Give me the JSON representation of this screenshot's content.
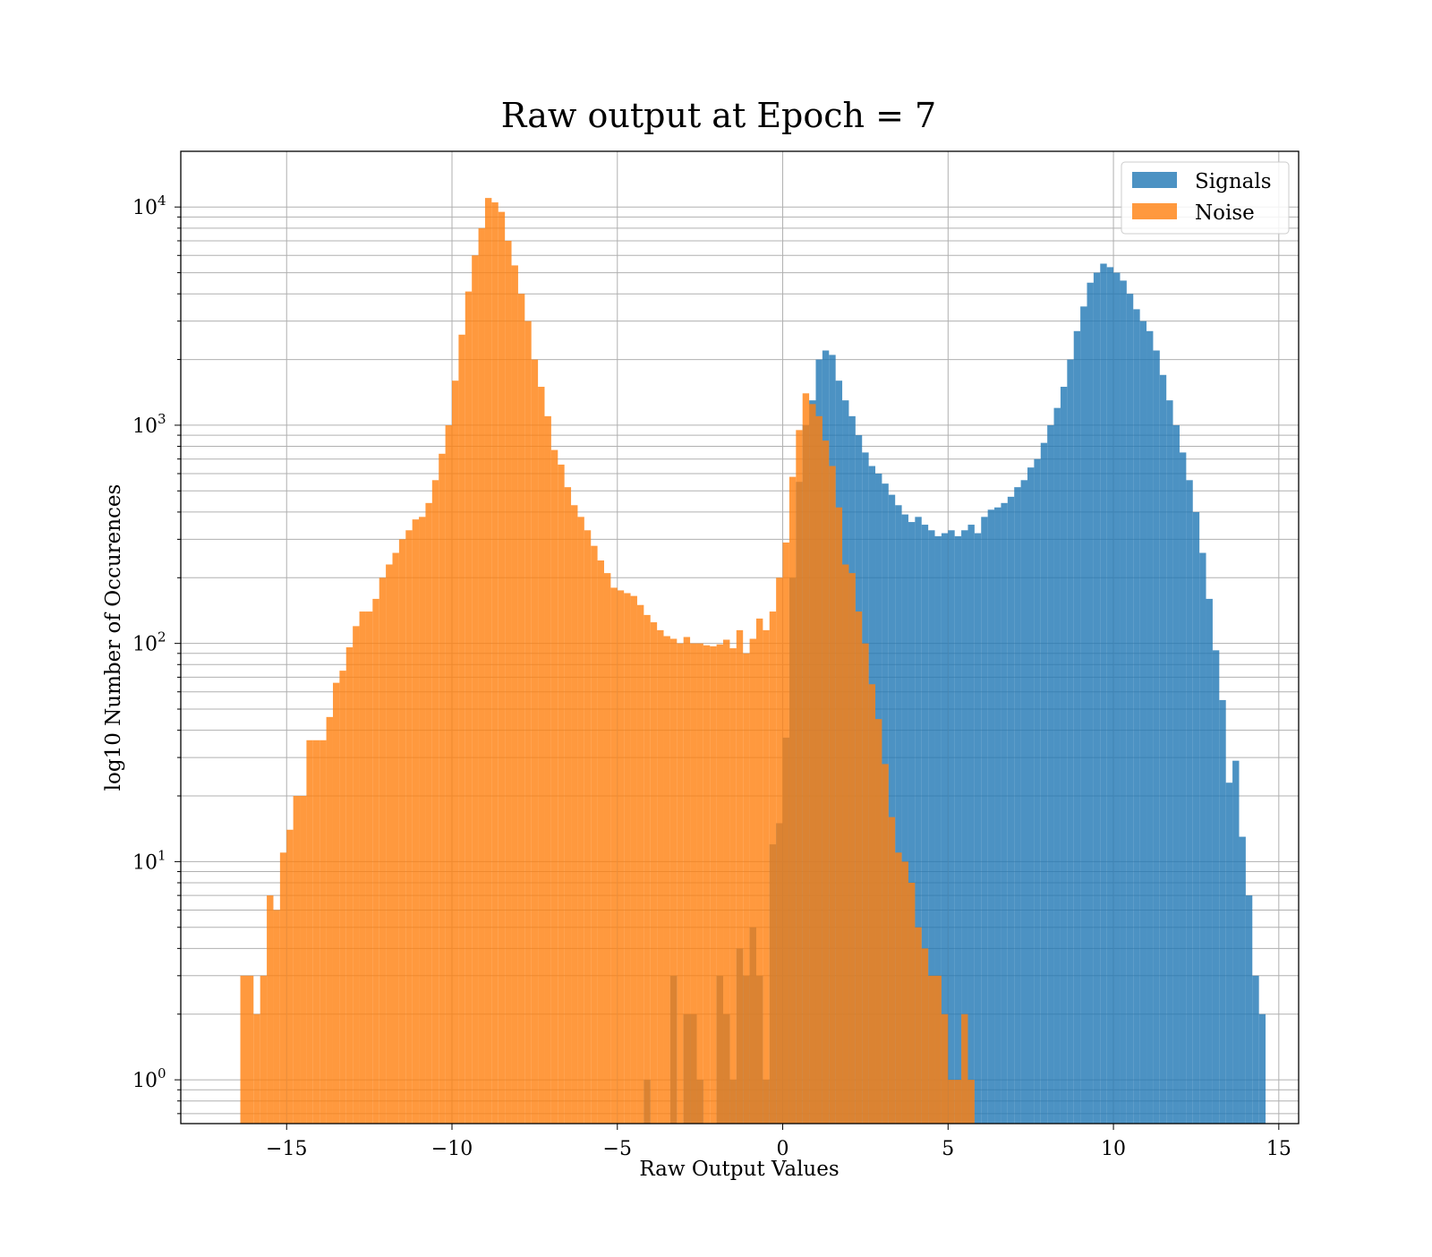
{
  "chart_data": {
    "type": "bar",
    "title": "Raw output at Epoch = 7",
    "xlabel": "Raw Output Values",
    "ylabel": "log10 Number of Occurences",
    "xlim": [
      -18.2,
      15.6
    ],
    "ylim": [
      0.63,
      18000
    ],
    "yscale": "log",
    "grid": true,
    "legend_position": "top-right",
    "xticks": [
      -15,
      -10,
      -5,
      0,
      5,
      10,
      15
    ],
    "xtick_labels": [
      "−15",
      "−10",
      "−5",
      "0",
      "5",
      "10",
      "15"
    ],
    "yticks": [
      {
        "value": 1,
        "base": "10",
        "exp": "0"
      },
      {
        "value": 10,
        "base": "10",
        "exp": "1"
      },
      {
        "value": 100,
        "base": "10",
        "exp": "2"
      },
      {
        "value": 1000,
        "base": "10",
        "exp": "3"
      },
      {
        "value": 10000,
        "base": "10",
        "exp": "4"
      }
    ],
    "series": [
      {
        "name": "Signals",
        "color": "#1f77b4",
        "opacity": 0.8,
        "bins": [
          [
            -4.2,
            -4.0,
            1
          ],
          [
            -3.4,
            -3.2,
            3
          ],
          [
            -3.0,
            -2.8,
            2
          ],
          [
            -2.8,
            -2.6,
            2
          ],
          [
            -2.6,
            -2.4,
            1
          ],
          [
            -2.0,
            -1.8,
            3
          ],
          [
            -1.8,
            -1.6,
            2
          ],
          [
            -1.6,
            -1.4,
            1
          ],
          [
            -1.4,
            -1.2,
            4
          ],
          [
            -1.2,
            -1.0,
            3
          ],
          [
            -1.0,
            -0.8,
            5
          ],
          [
            -0.8,
            -0.6,
            3
          ],
          [
            -0.6,
            -0.4,
            1
          ],
          [
            -0.4,
            -0.2,
            12
          ],
          [
            -0.2,
            0.0,
            15
          ],
          [
            0.0,
            0.2,
            37
          ],
          [
            0.2,
            0.4,
            200
          ],
          [
            0.4,
            0.6,
            550
          ],
          [
            0.6,
            0.8,
            1000
          ],
          [
            0.8,
            1.0,
            1300
          ],
          [
            1.0,
            1.2,
            2000
          ],
          [
            1.2,
            1.4,
            2200
          ],
          [
            1.4,
            1.6,
            2100
          ],
          [
            1.6,
            1.8,
            1600
          ],
          [
            1.8,
            2.0,
            1300
          ],
          [
            2.0,
            2.2,
            1100
          ],
          [
            2.2,
            2.4,
            900
          ],
          [
            2.4,
            2.6,
            750
          ],
          [
            2.6,
            2.8,
            650
          ],
          [
            2.8,
            3.0,
            600
          ],
          [
            3.0,
            3.2,
            540
          ],
          [
            3.2,
            3.4,
            480
          ],
          [
            3.4,
            3.6,
            430
          ],
          [
            3.6,
            3.8,
            390
          ],
          [
            3.8,
            4.0,
            360
          ],
          [
            4.0,
            4.2,
            380
          ],
          [
            4.2,
            4.4,
            350
          ],
          [
            4.4,
            4.6,
            330
          ],
          [
            4.6,
            4.8,
            310
          ],
          [
            4.8,
            5.0,
            320
          ],
          [
            5.0,
            5.2,
            330
          ],
          [
            5.2,
            5.4,
            310
          ],
          [
            5.4,
            5.6,
            330
          ],
          [
            5.6,
            5.8,
            350
          ],
          [
            5.8,
            6.0,
            320
          ],
          [
            6.0,
            6.2,
            380
          ],
          [
            6.2,
            6.4,
            410
          ],
          [
            6.4,
            6.6,
            420
          ],
          [
            6.6,
            6.8,
            440
          ],
          [
            6.8,
            7.0,
            470
          ],
          [
            7.0,
            7.2,
            520
          ],
          [
            7.2,
            7.4,
            560
          ],
          [
            7.4,
            7.6,
            640
          ],
          [
            7.6,
            7.8,
            700
          ],
          [
            7.8,
            8.0,
            830
          ],
          [
            8.0,
            8.2,
            1000
          ],
          [
            8.2,
            8.4,
            1200
          ],
          [
            8.4,
            8.6,
            1500
          ],
          [
            8.6,
            8.8,
            2000
          ],
          [
            8.8,
            9.0,
            2700
          ],
          [
            9.0,
            9.2,
            3500
          ],
          [
            9.2,
            9.4,
            4500
          ],
          [
            9.4,
            9.6,
            5000
          ],
          [
            9.6,
            9.8,
            5500
          ],
          [
            9.8,
            10.0,
            5300
          ],
          [
            10.0,
            10.2,
            5000
          ],
          [
            10.2,
            10.4,
            4600
          ],
          [
            10.4,
            10.6,
            4000
          ],
          [
            10.6,
            10.8,
            3400
          ],
          [
            10.8,
            11.0,
            3000
          ],
          [
            11.0,
            11.2,
            2700
          ],
          [
            11.2,
            11.4,
            2200
          ],
          [
            11.4,
            11.6,
            1700
          ],
          [
            11.6,
            11.8,
            1300
          ],
          [
            11.8,
            12.0,
            1000
          ],
          [
            12.0,
            12.2,
            750
          ],
          [
            12.2,
            12.4,
            560
          ],
          [
            12.4,
            12.6,
            400
          ],
          [
            12.6,
            12.8,
            260
          ],
          [
            12.8,
            13.0,
            160
          ],
          [
            13.0,
            13.2,
            93
          ],
          [
            13.2,
            13.4,
            55
          ],
          [
            13.4,
            13.6,
            23
          ],
          [
            13.6,
            13.8,
            29
          ],
          [
            13.8,
            14.0,
            13
          ],
          [
            14.0,
            14.2,
            7
          ],
          [
            14.2,
            14.4,
            3
          ],
          [
            14.4,
            14.6,
            2
          ]
        ]
      },
      {
        "name": "Noise",
        "color": "#ff7f0e",
        "opacity": 0.8,
        "bins": [
          [
            -16.4,
            -16.0,
            3
          ],
          [
            -16.0,
            -15.8,
            2
          ],
          [
            -15.8,
            -15.6,
            3
          ],
          [
            -15.6,
            -15.4,
            7
          ],
          [
            -15.4,
            -15.2,
            6
          ],
          [
            -15.2,
            -15.0,
            11
          ],
          [
            -15.0,
            -14.8,
            14
          ],
          [
            -14.8,
            -14.6,
            20
          ],
          [
            -14.6,
            -14.4,
            20
          ],
          [
            -14.4,
            -14.2,
            36
          ],
          [
            -14.2,
            -14.0,
            36
          ],
          [
            -14.0,
            -13.8,
            36
          ],
          [
            -13.8,
            -13.6,
            46
          ],
          [
            -13.6,
            -13.4,
            66
          ],
          [
            -13.4,
            -13.2,
            75
          ],
          [
            -13.2,
            -13.0,
            96
          ],
          [
            -13.0,
            -12.8,
            120
          ],
          [
            -12.8,
            -12.6,
            140
          ],
          [
            -12.6,
            -12.4,
            140
          ],
          [
            -12.4,
            -12.2,
            160
          ],
          [
            -12.2,
            -12.0,
            200
          ],
          [
            -12.0,
            -11.8,
            230
          ],
          [
            -11.8,
            -11.6,
            260
          ],
          [
            -11.6,
            -11.4,
            300
          ],
          [
            -11.4,
            -11.2,
            330
          ],
          [
            -11.2,
            -11.0,
            370
          ],
          [
            -11.0,
            -10.8,
            380
          ],
          [
            -10.8,
            -10.6,
            440
          ],
          [
            -10.6,
            -10.4,
            560
          ],
          [
            -10.4,
            -10.2,
            740
          ],
          [
            -10.2,
            -10.0,
            1000
          ],
          [
            -10.0,
            -9.8,
            1600
          ],
          [
            -9.8,
            -9.6,
            2600
          ],
          [
            -9.6,
            -9.4,
            4100
          ],
          [
            -9.4,
            -9.2,
            6000
          ],
          [
            -9.2,
            -9.0,
            8000
          ],
          [
            -9.0,
            -8.8,
            11000
          ],
          [
            -8.8,
            -8.6,
            10500
          ],
          [
            -8.6,
            -8.4,
            9500
          ],
          [
            -8.4,
            -8.2,
            7000
          ],
          [
            -8.2,
            -8.0,
            5400
          ],
          [
            -8.0,
            -7.8,
            4000
          ],
          [
            -7.8,
            -7.6,
            3000
          ],
          [
            -7.6,
            -7.4,
            2000
          ],
          [
            -7.4,
            -7.2,
            1500
          ],
          [
            -7.2,
            -7.0,
            1100
          ],
          [
            -7.0,
            -6.8,
            770
          ],
          [
            -6.8,
            -6.6,
            660
          ],
          [
            -6.6,
            -6.4,
            520
          ],
          [
            -6.4,
            -6.2,
            430
          ],
          [
            -6.2,
            -6.0,
            380
          ],
          [
            -6.0,
            -5.8,
            330
          ],
          [
            -5.8,
            -5.6,
            280
          ],
          [
            -5.6,
            -5.4,
            240
          ],
          [
            -5.4,
            -5.2,
            210
          ],
          [
            -5.2,
            -5.0,
            180
          ],
          [
            -5.0,
            -4.8,
            175
          ],
          [
            -4.8,
            -4.6,
            170
          ],
          [
            -4.6,
            -4.4,
            165
          ],
          [
            -4.4,
            -4.2,
            150
          ],
          [
            -4.2,
            -4.0,
            135
          ],
          [
            -4.0,
            -3.8,
            125
          ],
          [
            -3.8,
            -3.6,
            115
          ],
          [
            -3.6,
            -3.4,
            108
          ],
          [
            -3.4,
            -3.2,
            105
          ],
          [
            -3.2,
            -3.0,
            100
          ],
          [
            -3.0,
            -2.8,
            107
          ],
          [
            -2.8,
            -2.6,
            100
          ],
          [
            -2.6,
            -2.4,
            100
          ],
          [
            -2.4,
            -2.2,
            98
          ],
          [
            -2.2,
            -2.0,
            97
          ],
          [
            -2.0,
            -1.8,
            99
          ],
          [
            -1.8,
            -1.6,
            104
          ],
          [
            -1.6,
            -1.4,
            95
          ],
          [
            -1.4,
            -1.2,
            115
          ],
          [
            -1.2,
            -1.0,
            90
          ],
          [
            -1.0,
            -0.8,
            105
          ],
          [
            -0.8,
            -0.6,
            130
          ],
          [
            -0.6,
            -0.4,
            115
          ],
          [
            -0.4,
            -0.2,
            140
          ],
          [
            -0.2,
            0.0,
            200
          ],
          [
            0.0,
            0.2,
            290
          ],
          [
            0.2,
            0.4,
            580
          ],
          [
            0.4,
            0.6,
            950
          ],
          [
            0.6,
            0.8,
            1400
          ],
          [
            0.8,
            1.0,
            1250
          ],
          [
            1.0,
            1.2,
            1100
          ],
          [
            1.2,
            1.4,
            850
          ],
          [
            1.4,
            1.6,
            650
          ],
          [
            1.6,
            1.8,
            420
          ],
          [
            1.8,
            2.0,
            230
          ],
          [
            2.0,
            2.2,
            210
          ],
          [
            2.2,
            2.4,
            140
          ],
          [
            2.4,
            2.6,
            100
          ],
          [
            2.6,
            2.8,
            65
          ],
          [
            2.8,
            3.0,
            45
          ],
          [
            3.0,
            3.2,
            28
          ],
          [
            3.2,
            3.4,
            16
          ],
          [
            3.4,
            3.6,
            11
          ],
          [
            3.6,
            3.8,
            10
          ],
          [
            3.8,
            4.0,
            8
          ],
          [
            4.0,
            4.2,
            5
          ],
          [
            4.2,
            4.4,
            4
          ],
          [
            4.4,
            4.6,
            3
          ],
          [
            4.6,
            4.8,
            3
          ],
          [
            4.8,
            5.0,
            2
          ],
          [
            5.0,
            5.2,
            1
          ],
          [
            5.2,
            5.4,
            1
          ],
          [
            5.4,
            5.6,
            2
          ],
          [
            5.6,
            5.8,
            1
          ]
        ]
      }
    ]
  }
}
